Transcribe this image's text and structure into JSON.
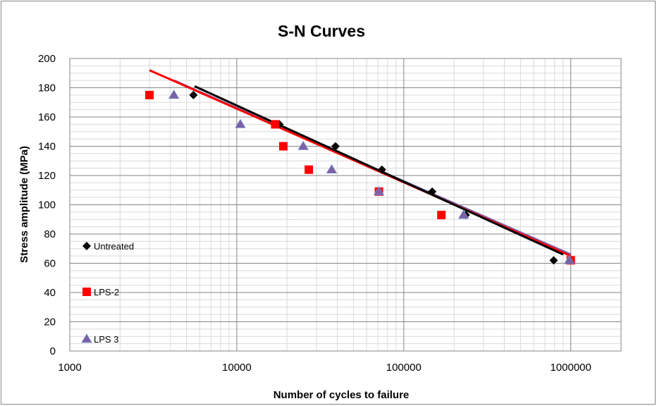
{
  "chart_data": {
    "type": "scatter",
    "title": "S-N Curves",
    "xlabel": "Number of cycles to failure",
    "ylabel": "Stress amplitude (MPa)",
    "x_scale": "log",
    "xlim": [
      1000,
      2000000
    ],
    "ylim": [
      0,
      200
    ],
    "x_ticks": [
      1000,
      10000,
      100000,
      1000000
    ],
    "x_tick_labels": [
      "1000",
      "10000",
      "100000",
      "1000000"
    ],
    "y_ticks": [
      0,
      20,
      40,
      60,
      80,
      100,
      120,
      140,
      160,
      180,
      200
    ],
    "y_tick_labels": [
      "0",
      "20",
      "40",
      "60",
      "80",
      "100",
      "120",
      "140",
      "160",
      "180",
      "200"
    ],
    "grid": true,
    "legend_position": "left",
    "series": [
      {
        "name": "Untreated",
        "marker": "diamond",
        "color": "#000000",
        "points": [
          [
            5500,
            175
          ],
          [
            18000,
            155
          ],
          [
            39000,
            140
          ],
          [
            74000,
            124
          ],
          [
            148000,
            109
          ],
          [
            235000,
            93
          ],
          [
            790000,
            62
          ]
        ],
        "trendline": [
          [
            5600,
            181
          ],
          [
            900000,
            66
          ]
        ]
      },
      {
        "name": "LPS-2",
        "marker": "square",
        "color": "#ff0000",
        "points": [
          [
            3000,
            175
          ],
          [
            17000,
            155
          ],
          [
            19000,
            140
          ],
          [
            27000,
            124
          ],
          [
            71000,
            109
          ],
          [
            168000,
            93
          ],
          [
            1000000,
            62
          ]
        ],
        "trendline": [
          [
            3000,
            192
          ],
          [
            1000000,
            65
          ]
        ]
      },
      {
        "name": "LPS 3",
        "marker": "triangle",
        "color": "#7f5fa6",
        "points": [
          [
            4200,
            175
          ],
          [
            10500,
            155
          ],
          [
            25000,
            140
          ],
          [
            37000,
            124
          ],
          [
            71000,
            109
          ],
          [
            228000,
            93
          ],
          [
            980000,
            62
          ]
        ],
        "trendline": [
          [
            4200,
            185
          ],
          [
            1000000,
            66
          ]
        ]
      }
    ]
  }
}
